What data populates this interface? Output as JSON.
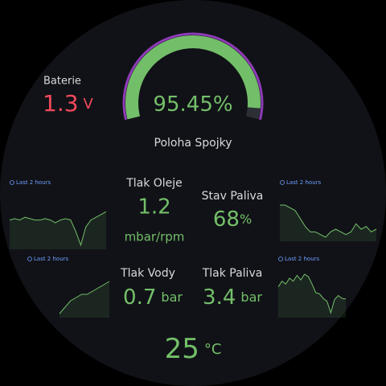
{
  "battery": {
    "label": "Baterie",
    "value": 1.3,
    "unit": "V"
  },
  "clutch": {
    "label": "Poloha Spojky",
    "value": 95.45,
    "unit": "%",
    "range": [
      0,
      100
    ]
  },
  "oil_pressure": {
    "label": "Tlak Oleje",
    "value": 1.2,
    "unit": "mbar/rpm"
  },
  "fuel_level": {
    "label": "Stav Paliva",
    "value": 68,
    "unit": "%"
  },
  "water_pressure": {
    "label": "Tlak Vody",
    "value": 0.7,
    "unit": "bar"
  },
  "fuel_pressure": {
    "label": "Tlak Paliva",
    "value": 3.4,
    "unit": "bar"
  },
  "temperature": {
    "value": 25,
    "unit": "°C"
  },
  "sparklines": [
    {
      "label": "Last 2 hours",
      "values": [
        5,
        5.1,
        5,
        5.2,
        5.1,
        5,
        5,
        5.1,
        5,
        4.8,
        5,
        5.1,
        5,
        4.2,
        3.2,
        4.5,
        5,
        5.2,
        5.4,
        5.6
      ]
    },
    {
      "label": "Last 2 hours",
      "values": [
        6,
        6,
        5.9,
        5.8,
        5.5,
        5.2,
        5,
        5,
        4.9,
        4.8,
        5,
        5.1,
        5,
        4.9,
        5,
        5.3,
        5.1,
        5.2,
        5,
        5.1
      ]
    },
    {
      "label": "Last 2 hours",
      "values": [
        3,
        3.2,
        3.4,
        3.5,
        3.6,
        3.6,
        3.7,
        3.8,
        3.9,
        4
      ]
    },
    {
      "label": "Last 2 hours",
      "values": [
        5,
        6,
        5.5,
        6.5,
        6,
        7,
        6.2,
        7.2,
        6.8,
        5.5,
        4,
        3.8,
        3,
        2.5,
        0.5,
        2.8,
        3.5,
        3,
        2.9
      ]
    }
  ]
}
